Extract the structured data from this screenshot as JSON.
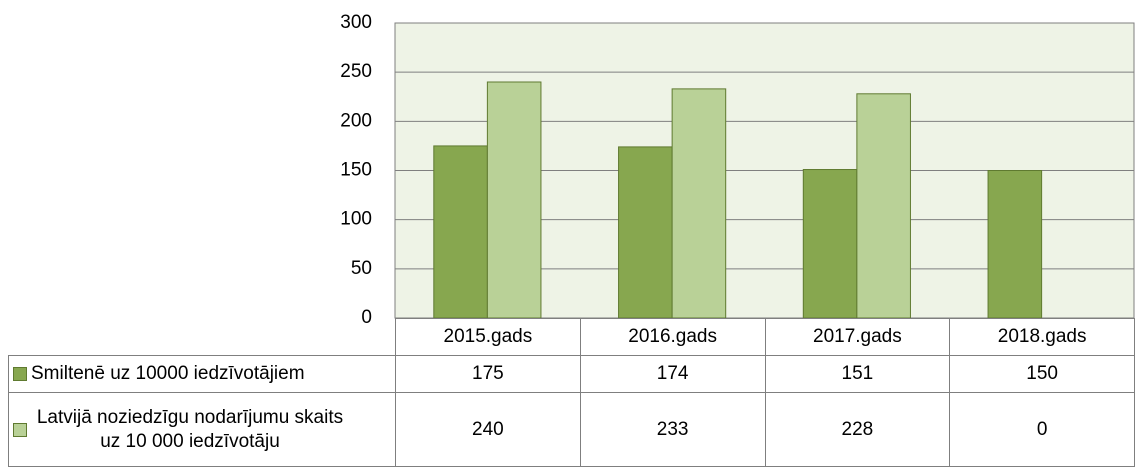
{
  "chart_data": {
    "type": "bar",
    "categories": [
      "2015.gads",
      "2016.gads",
      "2017.gads",
      "2018.gads"
    ],
    "series": [
      {
        "name": "Smiltenē uz 10000 iedzīvotājiem",
        "color": "#87a74f",
        "values": [
          175,
          174,
          151,
          150
        ]
      },
      {
        "name": "Latvijā noziedzīgu nodarījumu skaits uz 10 000 iedzīvotāju",
        "color": "#b9d197",
        "values": [
          240,
          233,
          228,
          0
        ]
      }
    ],
    "ylim": [
      0,
      300
    ],
    "yticks": [
      0,
      50,
      100,
      150,
      200,
      250,
      300
    ],
    "grid": true,
    "data_table": true
  }
}
